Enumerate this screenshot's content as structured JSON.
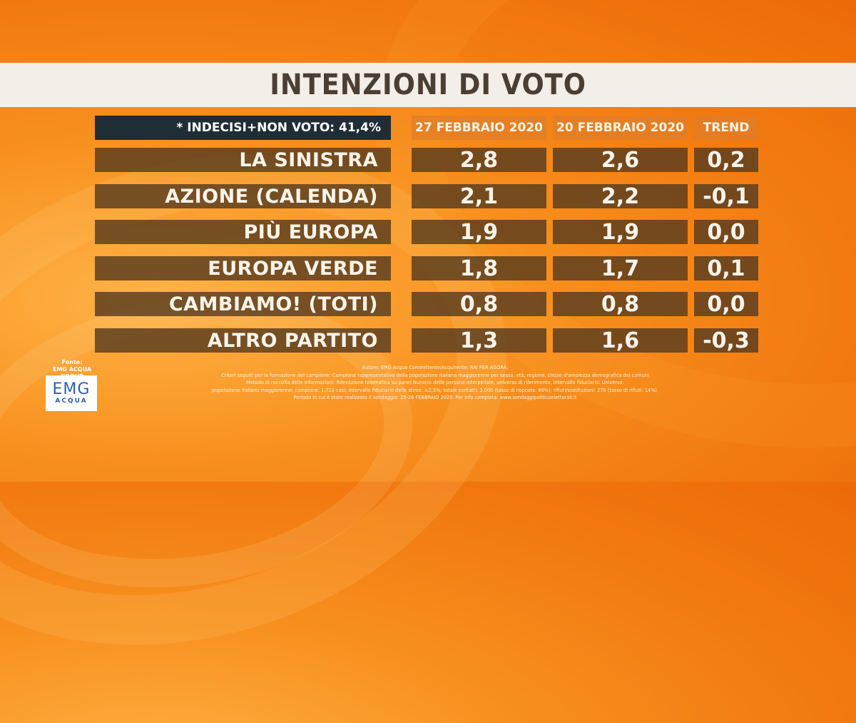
{
  "title": "INTENZIONI DI VOTO",
  "note": "* INDECISI+NON VOTO: 41,4%",
  "chart_data": {
    "type": "table",
    "columns": [
      "27 FEBBRAIO 2020",
      "20 FEBBRAIO 2020",
      "TREND"
    ],
    "rows": [
      {
        "label": "LA SINISTRA",
        "values": [
          "2,8",
          "2,6",
          "0,2"
        ]
      },
      {
        "label": "AZIONE (CALENDA)",
        "values": [
          "2,1",
          "2,2",
          "-0,1"
        ]
      },
      {
        "label": "PIÙ EUROPA",
        "values": [
          "1,9",
          "1,9",
          "0,0"
        ]
      },
      {
        "label": "EUROPA VERDE",
        "values": [
          "1,8",
          "1,7",
          "0,1"
        ]
      },
      {
        "label": "CAMBIAMO! (TOTI)",
        "values": [
          "0,8",
          "0,8",
          "0,0"
        ]
      },
      {
        "label": "ALTRO PARTITO",
        "values": [
          "1,3",
          "1,6",
          "-0,3"
        ]
      }
    ]
  },
  "source": {
    "label": "Fonte:",
    "name": "EMG ACQUA GROUP",
    "logo_text": "EMG",
    "logo_sub": "ACQUA"
  },
  "footnote": [
    "Autore: EMG Acqua Committente/Acquirente: RAI PER AGORÀ;",
    "Criteri seguiti per la formazione del campione: Campione rappresentativo della popolazione italiana maggiorenne per sesso, età, regione, classe d'ampiezza demografica dei comuni",
    "Metodo di raccolta delle informazioni: Rilevazione telematica su panel Numero delle persone interpellate, universo di riferimento, intervallo fiduciario: Universo:",
    "popolazione italiana maggiorenne; campione: 1.722 casi; intervallo fiduciario delle stime: ±2,3%; totale contatti: 2.000 (tasso di risposta: 86%); rifiuti/sostituzioni: 278 (tasso di rifiuti: 14%).",
    "Periodo in cui è stato realizzato il sondaggio: 25-26 FEBBRAIO 2020. Per info completa: www.sondaggipoliticoelettorali.it"
  ],
  "colors": {
    "background": "#f27a10",
    "title_band": "#f3efe8",
    "title_text": "#4b3e33",
    "row_fill": "#583c1e",
    "header_fill": "#e07e28",
    "note_fill": "#1f2d36",
    "logo_blue": "#2e5fa3"
  }
}
